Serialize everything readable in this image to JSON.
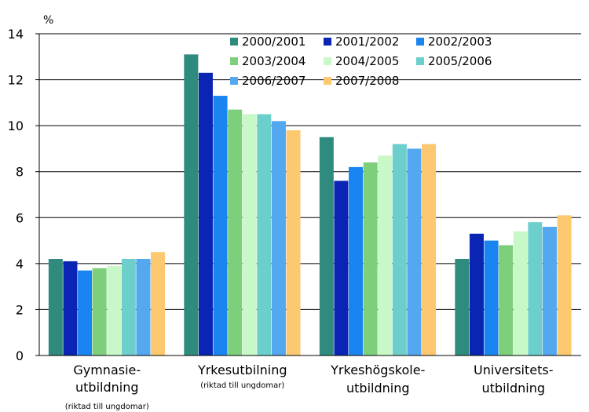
{
  "chart_data": {
    "type": "bar",
    "ylabel": "%",
    "ylim": [
      0,
      14
    ],
    "yticks": [
      0,
      2,
      4,
      6,
      8,
      10,
      12,
      14
    ],
    "grid": true,
    "legend_position": "top-right",
    "categories": [
      {
        "lines": [
          "Gymnasie-",
          "utbildning"
        ],
        "note": "(riktad till ungdomar)"
      },
      {
        "lines": [
          "Yrkesutbilning"
        ],
        "note": "(riktad till ungdomar)"
      },
      {
        "lines": [
          "Yrkeshögskole-",
          "utbildning"
        ],
        "note": ""
      },
      {
        "lines": [
          "Universitets-",
          "utbildning"
        ],
        "note": ""
      }
    ],
    "series": [
      {
        "name": "2000/2001",
        "color": "#2e8b7e",
        "values": [
          4.2,
          13.1,
          9.5,
          4.2
        ]
      },
      {
        "name": "2001/2002",
        "color": "#0a24b4",
        "values": [
          4.1,
          12.3,
          7.6,
          5.3
        ]
      },
      {
        "name": "2002/2003",
        "color": "#1a84f0",
        "values": [
          3.7,
          11.3,
          8.2,
          5.0
        ]
      },
      {
        "name": "2003/2004",
        "color": "#7ecf7c",
        "values": [
          3.8,
          10.7,
          8.4,
          4.8
        ]
      },
      {
        "name": "2004/2005",
        "color": "#c8f8c8",
        "values": [
          3.9,
          10.5,
          8.7,
          5.4
        ]
      },
      {
        "name": "2005/2006",
        "color": "#6ccfcb",
        "values": [
          4.2,
          10.5,
          9.2,
          5.8
        ]
      },
      {
        "name": "2006/2007",
        "color": "#54a8f0",
        "values": [
          4.2,
          10.2,
          9.0,
          5.6
        ]
      },
      {
        "name": "2007/2008",
        "color": "#fcc870",
        "values": [
          4.5,
          9.8,
          9.2,
          6.1
        ]
      }
    ]
  }
}
